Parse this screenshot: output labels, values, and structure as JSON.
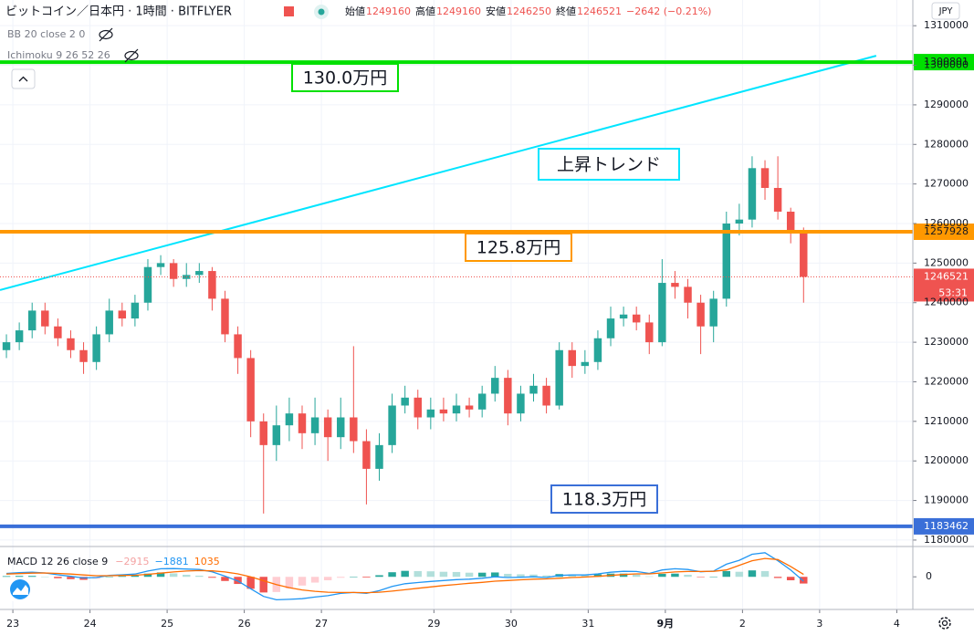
{
  "chart_data": {
    "type": "candlestick",
    "title": "ビットコイン／日本円 · 1時間 · BITFLYER",
    "ohlc_legend": [
      {
        "name": "始値",
        "value": 1249160
      },
      {
        "name": "高値",
        "value": 1249160
      },
      {
        "name": "安値",
        "value": 1246250
      },
      {
        "name": "終値",
        "value": 1246521
      }
    ],
    "change": "−2642 (−0.21%)",
    "indicators": [
      "BB 20 close 2 0",
      "Ichimoku 9 26 52 26"
    ],
    "currency": "JPY",
    "countdown": "53:31",
    "up_color": "#26a69a",
    "down_color": "#ef5350",
    "grid": true,
    "xlim": [
      -4,
      280
    ],
    "xticks": [
      {
        "value": 0,
        "label": "23"
      },
      {
        "value": 24,
        "label": "24"
      },
      {
        "value": 48,
        "label": "25"
      },
      {
        "value": 72,
        "label": "26"
      },
      {
        "value": 96,
        "label": "27"
      },
      {
        "value": 131,
        "label": "29"
      },
      {
        "value": 155,
        "label": "30"
      },
      {
        "value": 179,
        "label": "31"
      },
      {
        "value": 203,
        "label": "9月"
      },
      {
        "value": 227,
        "label": "2"
      },
      {
        "value": 251,
        "label": "3"
      },
      {
        "value": 275,
        "label": "4"
      }
    ],
    "ylim": [
      1178600,
      1316500
    ],
    "yticks": [
      1180000,
      1190000,
      1200000,
      1210000,
      1220000,
      1230000,
      1240000,
      1250000,
      1260000,
      1270000,
      1280000,
      1290000,
      1300000,
      1310000
    ],
    "x": [
      -2,
      2,
      6,
      10,
      14,
      18,
      22,
      26,
      30,
      34,
      38,
      42,
      46,
      50,
      54,
      58,
      62,
      66,
      70,
      74,
      78,
      82,
      86,
      90,
      94,
      98,
      102,
      106,
      110,
      114,
      118,
      122,
      126,
      130,
      134,
      138,
      142,
      146,
      150,
      154,
      158,
      162,
      166,
      170,
      174,
      178,
      182,
      186,
      190,
      194,
      198,
      202,
      206,
      210,
      214,
      218,
      222,
      226,
      230,
      234,
      238,
      242,
      246
    ],
    "open": [
      1228000,
      1230000,
      1233000,
      1238000,
      1234000,
      1231000,
      1228000,
      1225000,
      1232000,
      1238000,
      1236000,
      1240000,
      1249000,
      1250000,
      1246000,
      1247000,
      1248000,
      1241000,
      1232000,
      1226000,
      1210000,
      1204000,
      1209000,
      1212000,
      1207000,
      1211000,
      1206000,
      1211000,
      1205000,
      1198000,
      1204000,
      1214000,
      1216000,
      1211000,
      1213000,
      1212000,
      1214000,
      1213000,
      1217000,
      1221000,
      1212000,
      1217000,
      1219000,
      1214000,
      1228000,
      1224000,
      1225000,
      1231000,
      1236000,
      1237000,
      1235000,
      1230000,
      1245000,
      1244000,
      1240000,
      1234000,
      1241000,
      1260000,
      1261000,
      1274000,
      1269000,
      1263000,
      1258000
    ],
    "high": [
      1232000,
      1235000,
      1240000,
      1240000,
      1236000,
      1233000,
      1230000,
      1234000,
      1241000,
      1240000,
      1242000,
      1251000,
      1252000,
      1251000,
      1250000,
      1250000,
      1249000,
      1243000,
      1234000,
      1228000,
      1212000,
      1214000,
      1216000,
      1214000,
      1216000,
      1213000,
      1216000,
      1229000,
      1208000,
      1207000,
      1217000,
      1219000,
      1218000,
      1216000,
      1216000,
      1217000,
      1216000,
      1219000,
      1224000,
      1223000,
      1219000,
      1222000,
      1221000,
      1230000,
      1230000,
      1228000,
      1233000,
      1239000,
      1239000,
      1239000,
      1237000,
      1251000,
      1248000,
      1246000,
      1242000,
      1243000,
      1263000,
      1265000,
      1277000,
      1276000,
      1277000,
      1264000,
      1259000
    ],
    "low": [
      1226000,
      1228000,
      1231000,
      1232000,
      1229000,
      1226000,
      1222000,
      1223000,
      1230000,
      1234000,
      1234000,
      1238000,
      1247000,
      1244000,
      1244000,
      1245000,
      1238000,
      1230000,
      1222000,
      1206000,
      1186700,
      1200000,
      1205000,
      1203000,
      1204000,
      1200000,
      1203000,
      1202000,
      1189000,
      1195000,
      1202000,
      1212000,
      1208000,
      1208000,
      1210000,
      1210000,
      1211000,
      1211000,
      1215000,
      1209000,
      1210000,
      1215000,
      1212000,
      1213000,
      1221000,
      1222000,
      1223000,
      1229000,
      1234000,
      1233000,
      1227000,
      1229000,
      1241000,
      1236000,
      1227000,
      1230000,
      1239000,
      1257000,
      1259000,
      1266000,
      1261000,
      1255000,
      1240000
    ],
    "close": [
      1230000,
      1233000,
      1238000,
      1234000,
      1231000,
      1228000,
      1225000,
      1232000,
      1238000,
      1236000,
      1240000,
      1249000,
      1250000,
      1246000,
      1247000,
      1248000,
      1241000,
      1232000,
      1226000,
      1210000,
      1204000,
      1209000,
      1212000,
      1207000,
      1211000,
      1206000,
      1211000,
      1205000,
      1198000,
      1204000,
      1214000,
      1216000,
      1211000,
      1213000,
      1212000,
      1214000,
      1213000,
      1217000,
      1221000,
      1212000,
      1217000,
      1219000,
      1214000,
      1228000,
      1224000,
      1225000,
      1231000,
      1236000,
      1237000,
      1235000,
      1230000,
      1245000,
      1244000,
      1240000,
      1234000,
      1241000,
      1260000,
      1261000,
      1274000,
      1269000,
      1263000,
      1258000,
      1246521
    ],
    "levels": [
      {
        "value": 1300801,
        "color": "#00e000",
        "label": "130.0万円"
      },
      {
        "value": 1257928,
        "color": "#ff9800",
        "label": "125.8万円"
      },
      {
        "value": 1183462,
        "color": "#3a6fd8",
        "label": "118.3万円"
      }
    ],
    "trendline": {
      "label": "上昇トレンド",
      "color": "#00e5ff",
      "x": [
        -4,
        268.6
      ],
      "y": [
        1243200,
        1302400
      ]
    },
    "macd": {
      "title": "MACD 12 26 close 9",
      "legend": [
        {
          "value": -2915,
          "label": "−2915"
        },
        {
          "value": -1881,
          "label": "−1881"
        },
        1035
      ],
      "ylim": [
        -13000,
        12000
      ],
      "yticks": [
        0
      ],
      "macd_color": "#2196f3",
      "signal_color": "#ff6d00",
      "histogram": [
        300,
        400,
        400,
        0,
        -600,
        -1000,
        -1300,
        -800,
        100,
        300,
        500,
        1400,
        1900,
        1500,
        900,
        500,
        -400,
        -1800,
        -3100,
        -5200,
        -6800,
        -6600,
        -5100,
        -3800,
        -2500,
        -1500,
        -400,
        0,
        -300,
        700,
        2000,
        2600,
        2500,
        2400,
        2200,
        2100,
        1800,
        1800,
        1900,
        1300,
        1100,
        1000,
        600,
        1200,
        1100,
        900,
        1100,
        1400,
        1400,
        1000,
        200,
        1300,
        1400,
        900,
        -100,
        100,
        2500,
        2200,
        2800,
        2500,
        -500,
        -1500,
        -2915
      ],
      "macd": [
        1500,
        1800,
        2000,
        1700,
        900,
        200,
        -500,
        -300,
        600,
        900,
        1200,
        2500,
        3500,
        3600,
        3400,
        3200,
        2200,
        300,
        -1800,
        -5200,
        -8500,
        -10000,
        -9800,
        -9500,
        -8800,
        -8200,
        -7200,
        -6800,
        -7200,
        -6000,
        -4200,
        -3000,
        -2500,
        -2000,
        -1600,
        -1200,
        -1000,
        -600,
        0,
        -300,
        -200,
        0,
        -300,
        600,
        800,
        800,
        1300,
        2000,
        2400,
        2300,
        1500,
        3000,
        3500,
        3200,
        2200,
        2500,
        5500,
        7200,
        9800,
        10500,
        7000,
        3000,
        -1881
      ],
      "signal": [
        1200,
        1400,
        1600,
        1700,
        1500,
        1200,
        800,
        500,
        500,
        600,
        700,
        1100,
        1600,
        2100,
        2500,
        2700,
        2600,
        2100,
        1300,
        0,
        -1700,
        -3400,
        -4700,
        -5700,
        -6300,
        -6700,
        -6800,
        -6800,
        -6900,
        -6700,
        -6200,
        -5600,
        -5000,
        -4400,
        -3800,
        -3300,
        -2800,
        -2400,
        -1900,
        -1600,
        -1300,
        -1000,
        -900,
        -600,
        -300,
        -100,
        200,
        600,
        1000,
        1300,
        1300,
        1700,
        2100,
        2300,
        2300,
        2400,
        3000,
        5000,
        7000,
        8000,
        7500,
        4500,
        1035
      ]
    }
  }
}
